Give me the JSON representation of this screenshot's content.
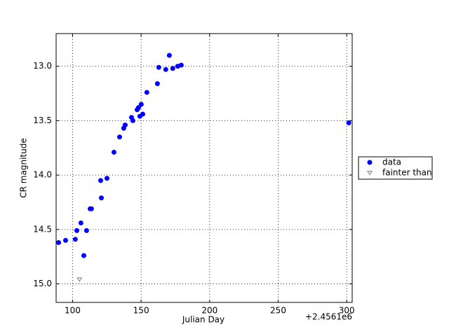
{
  "chart_data": {
    "type": "scatter",
    "xlabel": "Julian Day",
    "ylabel": "CR magnitude",
    "x_offset_label": "+2.4561e6",
    "xlim": [
      88,
      304
    ],
    "xticks": [
      100,
      150,
      200,
      250,
      300
    ],
    "ylim": [
      12.7,
      15.17
    ],
    "invert_y": true,
    "yticks": [
      {
        "value": 13,
        "label": "13.0"
      },
      {
        "value": 13.5,
        "label": "13.5"
      },
      {
        "value": 14,
        "label": "14.0"
      },
      {
        "value": 14.5,
        "label": "14.5"
      },
      {
        "value": 15,
        "label": "15.0"
      }
    ],
    "grid": true,
    "legend": "outside right",
    "series": [
      {
        "name": "data",
        "color": "#0000ff",
        "marker": "circle",
        "x": [
          89.8,
          94.9,
          102.0,
          103.1,
          106.1,
          108.2,
          110.2,
          112.8,
          113.8,
          120.5,
          121.0,
          125.1,
          130.2,
          134.3,
          137.3,
          138.4,
          143.0,
          144.0,
          147.1,
          148.1,
          149.1,
          150.1,
          151.2,
          154.2,
          161.9,
          162.9,
          168.0,
          170.6,
          173.1,
          176.7,
          179.3,
          301.5
        ],
        "values": [
          14.62,
          14.6,
          14.59,
          14.51,
          14.44,
          14.74,
          14.51,
          14.31,
          14.31,
          14.05,
          14.21,
          14.03,
          13.79,
          13.65,
          13.57,
          13.54,
          13.47,
          13.5,
          13.4,
          13.38,
          13.46,
          13.35,
          13.44,
          13.24,
          13.16,
          13.01,
          13.03,
          12.9,
          13.02,
          13.0,
          12.99,
          13.52
        ]
      },
      {
        "name": "fainter than",
        "color": "#808080",
        "marker": "triangle-down",
        "x": [
          105.1
        ],
        "values": [
          14.96
        ]
      }
    ]
  }
}
